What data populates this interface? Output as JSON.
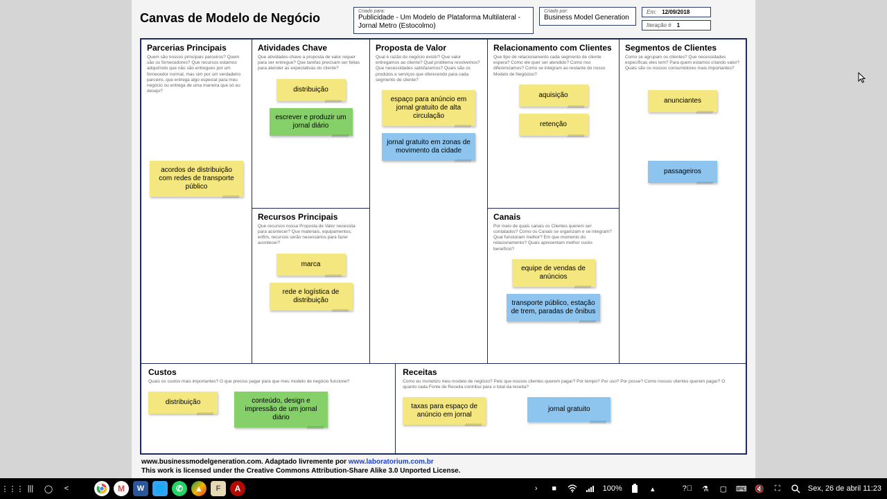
{
  "colors": {
    "yellow": "#f5e77f",
    "green": "#86d06a",
    "blue": "#8ec5ef",
    "border": "#1a2a5c",
    "pageBg": "#f4f4f4",
    "bodyBg": "#d5d5d5"
  },
  "header": {
    "title": "Canvas de Modelo de Negócio",
    "criadoParaLabel": "Criado para:",
    "criadoPara": "Publicidade - Um Modelo de Plataforma Multilateral - Jornal Metro (Estocolmo)",
    "criadoPorLabel": "Criado por:",
    "criadoPor": "Business Model Generation",
    "emLabel": "Em:",
    "em": "12/09/2018",
    "iterLabel": "Iteração #",
    "iter": "1"
  },
  "blocks": {
    "pp": {
      "title": "Parcerias Principais",
      "desc": "Quem são nossos principais parceiros? Quem são os fornecedores? Que recursos estamos adquirindo que não são entregues por um fornecedor normal, mas sim por um verdadeiro parceiro, que entrega algo especial para meu negócio ou entrega de uma maneira que só eu desejo?",
      "notes": [
        {
          "text": "acordos de distribuição com redes de transporte público",
          "color": "yellow"
        }
      ]
    },
    "ac": {
      "title": "Atividades Chave",
      "desc": "Que atividades-chave a proposta de valor requer para ser entregue? Que tarefas precisam ser feitas para atender as expectativas do cliente?",
      "notes": [
        {
          "text": "distribuição",
          "color": "yellow"
        },
        {
          "text": "escrever e produzir um jornal diário",
          "color": "green"
        }
      ]
    },
    "rp": {
      "title": "Recursos Principais",
      "desc": "Que recursos nossa Proposta de Valor necessita para acontecer? Que materiais, equipamentos, enfim, recursos serão necessários para fazer acontecer?",
      "notes": [
        {
          "text": "marca",
          "color": "yellow"
        },
        {
          "text": "rede e logística de distribuição",
          "color": "yellow"
        }
      ]
    },
    "vp": {
      "title": "Proposta de Valor",
      "desc": "Qual é razão do negócio existir? Que valor entregamos ao cliente? Qual problema resolvemos? Que necessidades satisfazemos? Quais são os produtos e serviços que oferecendo para cada segmento de cliente?",
      "notes": [
        {
          "text": "espaço para anúncio em jornal gratuito de alta circulação",
          "color": "yellow"
        },
        {
          "text": "jornal gratuito em zonas de movimento da cidade",
          "color": "blue"
        }
      ]
    },
    "rc": {
      "title": "Relacionamento com Clientes",
      "desc": "Que tipo de relacionamento cada segmento de cliente espera? Como ele quer ser atendido? Como nos diferenciamos? Como se integram ao restante do nosso Modelo de Negócios?",
      "notes": [
        {
          "text": "aquisição",
          "color": "yellow"
        },
        {
          "text": "retenção",
          "color": "yellow"
        }
      ]
    },
    "cn": {
      "title": "Canais",
      "desc": "Por meio de quais canais os Clientes querem ser contatados? Como os Canais se organizam e se integram? Qual funcionam melhor? Em que momento do relacionamento? Quais apresentam melhor custo-benefício?",
      "notes": [
        {
          "text": "equipe de vendas de anúncios",
          "color": "yellow"
        },
        {
          "text": "transporte público, estação de trem, paradas de ônibus",
          "color": "blue"
        }
      ]
    },
    "cs": {
      "title": "Segmentos de Clientes",
      "desc": "Como se agrupam os clientes? Que necessidades específicas eles tem? Para quem estamos criando valor? Quais são os nossos consumidores mais importantes?",
      "notes": [
        {
          "text": "anunciantes",
          "color": "yellow"
        },
        {
          "text": "passageiros",
          "color": "blue"
        }
      ]
    },
    "custos": {
      "title": "Custos",
      "desc": "Quais os custos mais importantes? O que preciso pagar para que meu modelo de negócio funcione?",
      "notes": [
        {
          "text": "distribuição",
          "color": "yellow"
        },
        {
          "text": "conteúdo, design e impressão de um jornal diário",
          "color": "green"
        }
      ]
    },
    "receitas": {
      "title": "Receitas",
      "desc": "Como eu monetizo meu modelo de negócio? Pelo que nossos clientes querem pagar? Por tempo? Por uso? Por posse? Como nossos clientes querem pagar? O quanto cada Fonte de Receita contribui para o total da receita?",
      "notes": [
        {
          "text": "taxas para espaço de anúncio em jornal",
          "color": "yellow"
        },
        {
          "text": "jornal gratuito",
          "color": "blue"
        }
      ]
    }
  },
  "footer": {
    "line1a": "www.businessmodelgeneration.com. Adaptado livremente por ",
    "link": "www.laboratorium.com.br",
    "line2": "This work is licensed under the Creative Commons Attribution-Share Alike 3.0 Unported License."
  },
  "taskbar": {
    "battery": "100%",
    "clock": "Sex, 26 de abril 11:23"
  }
}
